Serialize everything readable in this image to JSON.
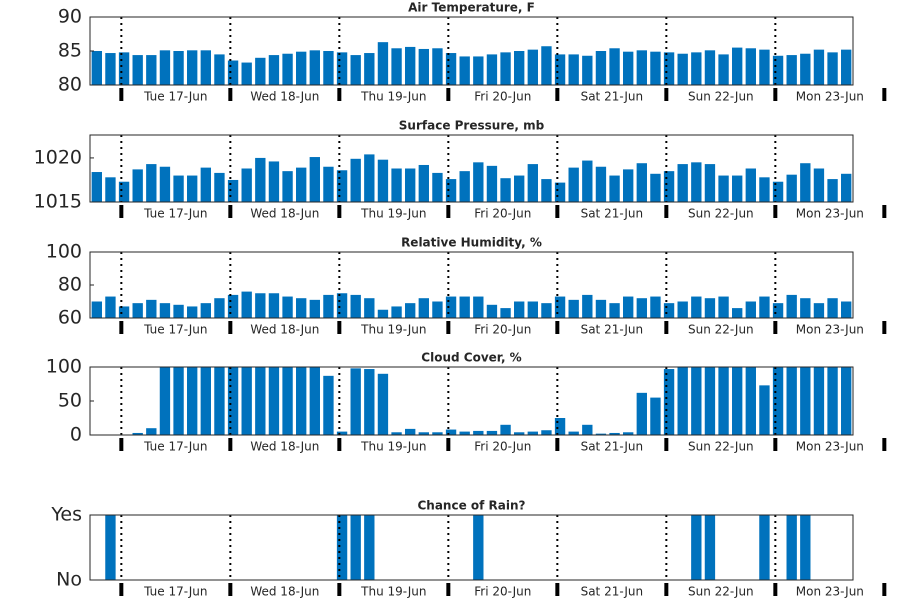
{
  "chart_data": [
    {
      "type": "bar",
      "title": "Air Temperature, F",
      "color": "#0072bd",
      "categories": [
        null,
        null,
        null,
        null,
        null,
        null,
        null,
        null,
        null,
        null,
        null,
        null,
        null,
        null,
        null,
        null,
        null,
        null,
        null,
        null,
        null,
        null,
        null,
        null,
        null,
        null,
        null,
        null,
        null,
        null,
        null,
        null,
        null,
        null,
        null,
        null,
        null,
        null,
        null,
        null,
        null,
        null,
        null,
        null,
        null,
        null,
        null,
        null,
        null,
        null,
        null,
        null,
        null,
        null,
        null,
        null
      ],
      "values": [
        85.0,
        84.7,
        84.8,
        84.4,
        84.4,
        85.1,
        85.0,
        85.1,
        85.1,
        84.5,
        83.6,
        83.3,
        84.0,
        84.4,
        84.6,
        84.9,
        85.1,
        85.0,
        84.8,
        84.4,
        84.7,
        86.3,
        85.4,
        85.6,
        85.3,
        85.4,
        84.7,
        84.2,
        84.2,
        84.5,
        84.8,
        85.0,
        85.2,
        85.7,
        84.5,
        84.5,
        84.3,
        85.0,
        85.4,
        84.9,
        85.1,
        84.9,
        84.8,
        84.6,
        84.8,
        85.1,
        84.5,
        85.5,
        85.4,
        85.2,
        84.3,
        84.4,
        84.6,
        85.2,
        84.8,
        85.2
      ],
      "xlim": [
        -0.5,
        55.5
      ],
      "ylim": [
        80,
        90
      ],
      "yticks": [
        80,
        85,
        90
      ],
      "xticks": [
        {
          "value": 5.8,
          "label": "Tue 17-Jun"
        },
        {
          "value": 13.8,
          "label": "Wed 18-Jun"
        },
        {
          "value": 21.8,
          "label": "Thu 19-Jun"
        },
        {
          "value": 29.8,
          "label": "Fri 20-Jun"
        },
        {
          "value": 37.8,
          "label": "Sat 21-Jun"
        },
        {
          "value": 45.8,
          "label": "Sun 22-Jun"
        },
        {
          "value": 53.8,
          "label": "Mon 23-Jun"
        }
      ]
    },
    {
      "type": "bar",
      "title": "Surface Pressure, mb",
      "color": "#0072bd",
      "categories": [
        null,
        null,
        null,
        null,
        null,
        null,
        null,
        null,
        null,
        null,
        null,
        null,
        null,
        null,
        null,
        null,
        null,
        null,
        null,
        null,
        null,
        null,
        null,
        null,
        null,
        null,
        null,
        null,
        null,
        null,
        null,
        null,
        null,
        null,
        null,
        null,
        null,
        null,
        null,
        null,
        null,
        null,
        null,
        null,
        null,
        null,
        null,
        null,
        null,
        null,
        null,
        null,
        null,
        null,
        null,
        null
      ],
      "values": [
        1018.4,
        1017.8,
        1017.3,
        1018.7,
        1019.3,
        1019.0,
        1018.0,
        1018.0,
        1018.9,
        1018.3,
        1017.5,
        1018.8,
        1020.0,
        1019.6,
        1018.5,
        1018.9,
        1020.1,
        1019.0,
        1018.6,
        1019.9,
        1020.4,
        1019.8,
        1018.8,
        1018.8,
        1019.2,
        1018.3,
        1017.6,
        1018.5,
        1019.5,
        1019.1,
        1017.7,
        1018.0,
        1019.3,
        1017.6,
        1017.2,
        1018.9,
        1019.7,
        1019.0,
        1018.0,
        1018.7,
        1019.4,
        1018.2,
        1018.5,
        1019.3,
        1019.5,
        1019.3,
        1018.0,
        1018.0,
        1018.8,
        1017.8,
        1017.3,
        1018.1,
        1019.4,
        1018.8,
        1017.6,
        1018.2
      ],
      "xlim": [
        -0.5,
        55.5
      ],
      "ylim": [
        1015,
        1022.6
      ],
      "yticks": [
        1015,
        1020
      ],
      "xticks": [
        {
          "value": 5.8,
          "label": "Tue 17-Jun"
        },
        {
          "value": 13.8,
          "label": "Wed 18-Jun"
        },
        {
          "value": 21.8,
          "label": "Thu 19-Jun"
        },
        {
          "value": 29.8,
          "label": "Fri 20-Jun"
        },
        {
          "value": 37.8,
          "label": "Sat 21-Jun"
        },
        {
          "value": 45.8,
          "label": "Sun 22-Jun"
        },
        {
          "value": 53.8,
          "label": "Mon 23-Jun"
        }
      ]
    },
    {
      "type": "bar",
      "title": "Relative Humidity, %",
      "color": "#0072bd",
      "categories": [
        null,
        null,
        null,
        null,
        null,
        null,
        null,
        null,
        null,
        null,
        null,
        null,
        null,
        null,
        null,
        null,
        null,
        null,
        null,
        null,
        null,
        null,
        null,
        null,
        null,
        null,
        null,
        null,
        null,
        null,
        null,
        null,
        null,
        null,
        null,
        null,
        null,
        null,
        null,
        null,
        null,
        null,
        null,
        null,
        null,
        null,
        null,
        null,
        null,
        null,
        null,
        null,
        null,
        null,
        null,
        null
      ],
      "values": [
        70,
        73,
        67,
        69,
        71,
        69,
        68,
        67,
        69,
        72,
        74,
        76,
        75,
        75,
        73,
        72,
        71,
        74,
        75,
        74,
        72,
        65,
        67,
        69,
        72,
        70,
        73,
        73,
        73,
        68,
        66,
        70,
        70,
        69,
        73,
        71,
        74,
        71,
        69,
        73,
        72,
        73,
        69,
        70,
        73,
        72,
        73,
        66,
        70,
        73,
        69,
        74,
        72,
        69,
        72,
        70
      ],
      "xlim": [
        -0.5,
        55.5
      ],
      "ylim": [
        60,
        100
      ],
      "yticks": [
        60,
        80,
        100
      ],
      "xticks": [
        {
          "value": 5.8,
          "label": "Tue 17-Jun"
        },
        {
          "value": 13.8,
          "label": "Wed 18-Jun"
        },
        {
          "value": 21.8,
          "label": "Thu 19-Jun"
        },
        {
          "value": 29.8,
          "label": "Fri 20-Jun"
        },
        {
          "value": 37.8,
          "label": "Sat 21-Jun"
        },
        {
          "value": 45.8,
          "label": "Sun 22-Jun"
        },
        {
          "value": 53.8,
          "label": "Mon 23-Jun"
        }
      ]
    },
    {
      "type": "bar",
      "title": "Cloud Cover, %",
      "color": "#0072bd",
      "categories": [
        null,
        null,
        null,
        null,
        null,
        null,
        null,
        null,
        null,
        null,
        null,
        null,
        null,
        null,
        null,
        null,
        null,
        null,
        null,
        null,
        null,
        null,
        null,
        null,
        null,
        null,
        null,
        null,
        null,
        null,
        null,
        null,
        null,
        null,
        null,
        null,
        null,
        null,
        null,
        null,
        null,
        null,
        null,
        null,
        null,
        null,
        null,
        null,
        null,
        null,
        null,
        null,
        null,
        null,
        null,
        null
      ],
      "values": [
        0,
        0,
        0,
        3,
        10,
        100,
        100,
        100,
        100,
        100,
        100,
        100,
        100,
        100,
        100,
        100,
        100,
        87,
        5,
        98,
        97,
        90,
        4,
        9,
        4,
        4,
        8,
        5,
        6,
        6,
        15,
        4,
        5,
        7,
        25,
        5,
        15,
        2,
        3,
        4,
        62,
        55,
        97,
        100,
        100,
        100,
        100,
        100,
        100,
        73,
        100,
        100,
        100,
        100,
        100,
        100
      ],
      "xlim": [
        -0.5,
        55.5
      ],
      "ylim": [
        0,
        100
      ],
      "yticks": [
        0,
        50,
        100
      ],
      "xticks": [
        {
          "value": 5.8,
          "label": "Tue 17-Jun"
        },
        {
          "value": 13.8,
          "label": "Wed 18-Jun"
        },
        {
          "value": 21.8,
          "label": "Thu 19-Jun"
        },
        {
          "value": 29.8,
          "label": "Fri 20-Jun"
        },
        {
          "value": 37.8,
          "label": "Sat 21-Jun"
        },
        {
          "value": 45.8,
          "label": "Sun 22-Jun"
        },
        {
          "value": 53.8,
          "label": "Mon 23-Jun"
        }
      ]
    },
    {
      "type": "bar",
      "title": "Chance of Rain?",
      "color": "#0072bd",
      "categories": [
        null,
        null,
        null,
        null,
        null,
        null,
        null,
        null,
        null,
        null,
        null,
        null,
        null,
        null,
        null,
        null,
        null,
        null,
        null,
        null,
        null,
        null,
        null,
        null,
        null,
        null,
        null,
        null,
        null,
        null,
        null,
        null,
        null,
        null,
        null,
        null,
        null,
        null,
        null,
        null,
        null,
        null,
        null,
        null,
        null,
        null,
        null,
        null,
        null,
        null,
        null,
        null,
        null,
        null,
        null,
        null
      ],
      "values": [
        0,
        1,
        0,
        0,
        0,
        0,
        0,
        0,
        0,
        0,
        0,
        0,
        0,
        0,
        0,
        0,
        0,
        0,
        1,
        1,
        1,
        0,
        0,
        0,
        0,
        0,
        0,
        0,
        1,
        0,
        0,
        0,
        0,
        0,
        0,
        0,
        0,
        0,
        0,
        0,
        0,
        0,
        0,
        0,
        1,
        1,
        0,
        0,
        0,
        1,
        0,
        1,
        1,
        0,
        0,
        0
      ],
      "xlim": [
        -0.5,
        55.5
      ],
      "ylim": [
        0,
        1
      ],
      "yticks": [
        {
          "value": 0,
          "label": "No"
        },
        {
          "value": 1,
          "label": "Yes"
        }
      ],
      "xticks": [
        {
          "value": 5.8,
          "label": "Tue 17-Jun"
        },
        {
          "value": 13.8,
          "label": "Wed 18-Jun"
        },
        {
          "value": 21.8,
          "label": "Thu 19-Jun"
        },
        {
          "value": 29.8,
          "label": "Fri 20-Jun"
        },
        {
          "value": 37.8,
          "label": "Sat 21-Jun"
        },
        {
          "value": 45.8,
          "label": "Sun 22-Jun"
        },
        {
          "value": 53.8,
          "label": "Mon 23-Jun"
        }
      ]
    }
  ]
}
